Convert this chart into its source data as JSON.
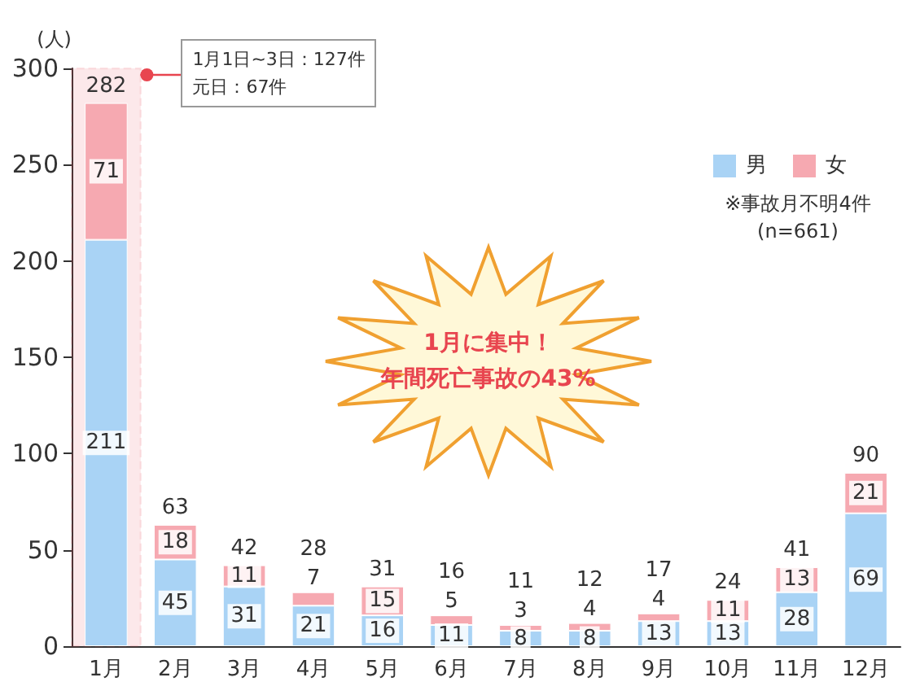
{
  "chart_data": {
    "type": "bar",
    "ylabel": "(人)",
    "categories": [
      "1月",
      "2月",
      "3月",
      "4月",
      "5月",
      "6月",
      "7月",
      "8月",
      "9月",
      "10月",
      "11月",
      "12月"
    ],
    "series": [
      {
        "name": "男",
        "color": "#a9d3f5",
        "values": [
          211,
          45,
          31,
          21,
          16,
          11,
          8,
          8,
          13,
          13,
          28,
          69
        ]
      },
      {
        "name": "女",
        "color": "#f6a9b1",
        "values": [
          71,
          18,
          11,
          7,
          15,
          5,
          3,
          4,
          4,
          11,
          13,
          21
        ]
      }
    ],
    "stacked": true,
    "data_labels": true,
    "totals": [
      "282",
      "63",
      "42",
      "28",
      "31",
      "16",
      "11",
      "12",
      "17",
      "24",
      "41",
      "90"
    ],
    "bands": [
      {
        "axis": "x",
        "from": "1月",
        "to": "1月",
        "color": "#e8454f"
      }
    ],
    "ylim": [
      0,
      300
    ],
    "yticks": [
      0,
      50,
      100,
      150,
      200,
      250,
      300
    ],
    "grid": false,
    "legend": "top right",
    "annotations": [
      "1月1日~3日：127件",
      "元日：67件",
      "1月に集中！",
      "年間死亡事故の43%",
      "※事故月不明4件\n(n=661)"
    ]
  }
}
